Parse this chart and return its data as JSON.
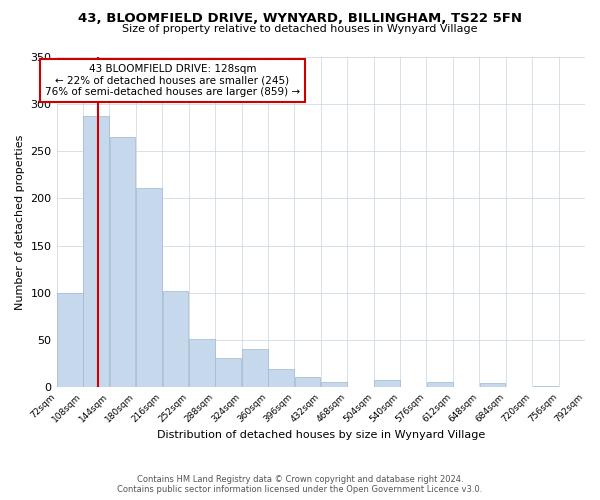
{
  "title": "43, BLOOMFIELD DRIVE, WYNYARD, BILLINGHAM, TS22 5FN",
  "subtitle": "Size of property relative to detached houses in Wynyard Village",
  "xlabel": "Distribution of detached houses by size in Wynyard Village",
  "ylabel": "Number of detached properties",
  "footer_line1": "Contains HM Land Registry data © Crown copyright and database right 2024.",
  "footer_line2": "Contains public sector information licensed under the Open Government Licence v3.0.",
  "bin_edges": [
    72,
    108,
    144,
    180,
    216,
    252,
    288,
    324,
    360,
    396,
    432,
    468,
    504,
    540,
    576,
    612,
    648,
    684,
    720,
    756,
    792
  ],
  "bar_heights": [
    100,
    287,
    265,
    211,
    102,
    51,
    31,
    41,
    20,
    11,
    6,
    0,
    8,
    0,
    6,
    0,
    5,
    0,
    2,
    0
  ],
  "bar_color": "#c5d8ec",
  "bar_edge_color": "#a0b8d0",
  "vline_x": 128,
  "vline_color": "#cc0000",
  "ylim": [
    0,
    350
  ],
  "yticks": [
    0,
    50,
    100,
    150,
    200,
    250,
    300,
    350
  ],
  "annotation_text": "43 BLOOMFIELD DRIVE: 128sqm\n← 22% of detached houses are smaller (245)\n76% of semi-detached houses are larger (859) →",
  "annotation_box_color": "#ffffff",
  "annotation_box_edge": "#cc0000",
  "bg_color": "#ffffff",
  "grid_color": "#c8d4e0"
}
